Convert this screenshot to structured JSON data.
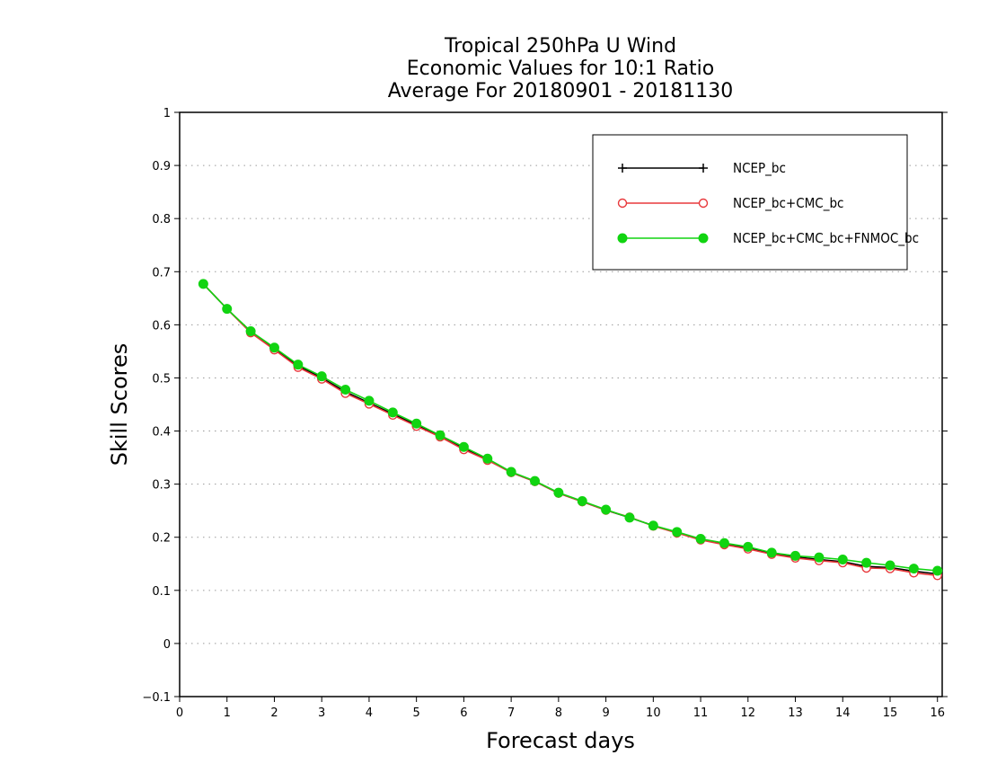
{
  "chart_data": {
    "type": "line",
    "title": [
      "Tropical 250hPa U Wind",
      "Economic Values for 10:1 Ratio",
      "Average For 20180901 - 20181130"
    ],
    "xlabel": "Forecast days",
    "ylabel": "Skill Scores",
    "xlim": [
      0,
      16.1
    ],
    "ylim": [
      -0.1,
      1
    ],
    "xticks": [
      "0",
      "1",
      "2",
      "3",
      "4",
      "5",
      "6",
      "7",
      "8",
      "9",
      "10",
      "11",
      "12",
      "13",
      "14",
      "15",
      "16"
    ],
    "yticks": [
      "−0.1",
      "0",
      "0.1",
      "0.2",
      "0.3",
      "0.4",
      "0.5",
      "0.6",
      "0.7",
      "0.8",
      "0.9",
      "1"
    ],
    "grid": "horizontal-dotted",
    "legend_position": "top-right",
    "x": [
      0.5,
      1,
      1.5,
      2,
      2.5,
      3,
      3.5,
      4,
      4.5,
      5,
      5.5,
      6,
      6.5,
      7,
      7.5,
      8,
      8.5,
      9,
      9.5,
      10,
      10.5,
      11,
      11.5,
      12,
      12.5,
      13,
      13.5,
      14,
      14.5,
      15,
      15.5,
      16
    ],
    "series": [
      {
        "name": "NCEP_bc",
        "color": "#000000",
        "marker": "plus",
        "values": [
          0.677,
          0.63,
          0.586,
          0.555,
          0.523,
          0.5,
          0.474,
          0.453,
          0.432,
          0.411,
          0.39,
          0.367,
          0.346,
          0.322,
          0.305,
          0.283,
          0.267,
          0.251,
          0.237,
          0.222,
          0.209,
          0.196,
          0.188,
          0.18,
          0.17,
          0.163,
          0.158,
          0.154,
          0.145,
          0.143,
          0.136,
          0.131
        ]
      },
      {
        "name": "NCEP_bc+CMC_bc",
        "color": "#e8383b",
        "marker": "open-circle",
        "values": [
          0.677,
          0.63,
          0.585,
          0.553,
          0.52,
          0.498,
          0.471,
          0.451,
          0.43,
          0.409,
          0.389,
          0.365,
          0.345,
          0.322,
          0.305,
          0.283,
          0.267,
          0.251,
          0.238,
          0.221,
          0.208,
          0.195,
          0.186,
          0.178,
          0.168,
          0.161,
          0.156,
          0.152,
          0.142,
          0.141,
          0.133,
          0.128
        ]
      },
      {
        "name": "NCEP_bc+CMC_bc+FNMOC_bc",
        "color": "#11d411",
        "marker": "filled-circle",
        "values": [
          0.677,
          0.63,
          0.588,
          0.557,
          0.525,
          0.503,
          0.478,
          0.457,
          0.435,
          0.414,
          0.392,
          0.37,
          0.348,
          0.323,
          0.306,
          0.284,
          0.268,
          0.252,
          0.237,
          0.222,
          0.21,
          0.197,
          0.189,
          0.182,
          0.171,
          0.165,
          0.162,
          0.158,
          0.152,
          0.147,
          0.141,
          0.137
        ]
      }
    ]
  }
}
